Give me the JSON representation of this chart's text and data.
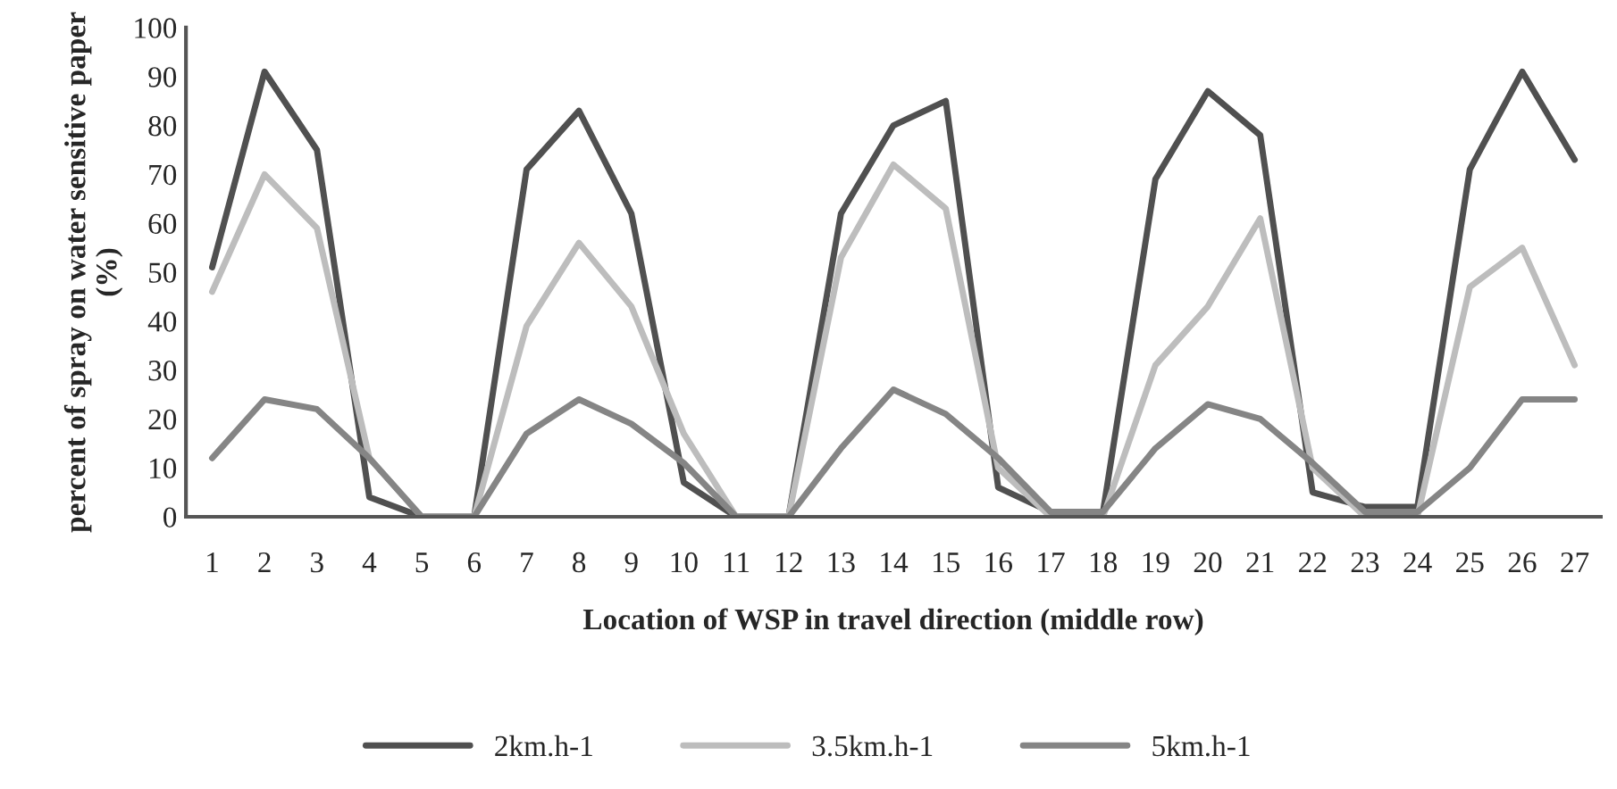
{
  "chart_data": {
    "type": "line",
    "xlabel": "Location of WSP in travel direction (middle row)",
    "ylabel": "percent of spray on water sensitive paper (%)",
    "categories": [
      "1",
      "2",
      "3",
      "4",
      "5",
      "6",
      "7",
      "8",
      "9",
      "10",
      "11",
      "12",
      "13",
      "14",
      "15",
      "16",
      "17",
      "18",
      "19",
      "20",
      "21",
      "22",
      "23",
      "24",
      "25",
      "26",
      "27"
    ],
    "series": [
      {
        "name": "2km.h-1",
        "color": "#505050",
        "values": [
          51,
          91,
          75,
          4,
          0,
          0,
          71,
          83,
          62,
          7,
          0,
          0,
          62,
          80,
          85,
          6,
          1,
          1,
          69,
          87,
          78,
          5,
          2,
          2,
          71,
          91,
          73
        ]
      },
      {
        "name": "3.5km.h-1",
        "color": "#bdbdbd",
        "values": [
          46,
          70,
          59,
          12,
          0,
          0,
          39,
          56,
          43,
          17,
          0,
          0,
          53,
          72,
          63,
          10,
          0,
          0,
          31,
          43,
          61,
          10,
          0,
          0,
          47,
          55,
          31
        ]
      },
      {
        "name": "5km.h-1",
        "color": "#858585",
        "values": [
          12,
          24,
          22,
          12,
          0,
          0,
          17,
          24,
          19,
          11,
          0,
          0,
          14,
          26,
          21,
          12,
          1,
          1,
          14,
          23,
          20,
          11,
          1,
          1,
          10,
          24,
          24
        ]
      }
    ],
    "ylim": [
      0,
      100
    ],
    "yticks": [
      0,
      10,
      20,
      30,
      40,
      50,
      60,
      70,
      80,
      90,
      100
    ],
    "grid": false,
    "legend": "bottom",
    "marker": "none",
    "line_style": "solid"
  }
}
